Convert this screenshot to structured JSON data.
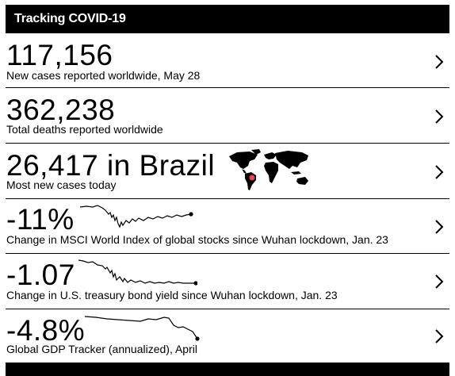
{
  "header": {
    "title": "Tracking COVID-19"
  },
  "rows": [
    {
      "value": "117,156",
      "label": "New cases reported worldwide, May 28"
    },
    {
      "value": "362,238",
      "label": "Total deaths reported worldwide"
    },
    {
      "value": "26,417 in Brazil",
      "label": "Most new cases today"
    },
    {
      "value": "-11%",
      "label": "Change in MSCI World Index of global stocks since Wuhan lockdown, Jan. 23"
    },
    {
      "value": "-1.07",
      "label": "Change in U.S. treasury bond yield since Wuhan lockdown, Jan. 23"
    },
    {
      "value": "-4.8%",
      "label": "Global GDP Tracker (annualized), April"
    }
  ],
  "icons": {
    "chevron": "chevron-right-icon",
    "map": "world-map-icon"
  },
  "colors": {
    "header_bg": "#000000",
    "text": "#000000",
    "highlight": "#e8445a"
  }
}
